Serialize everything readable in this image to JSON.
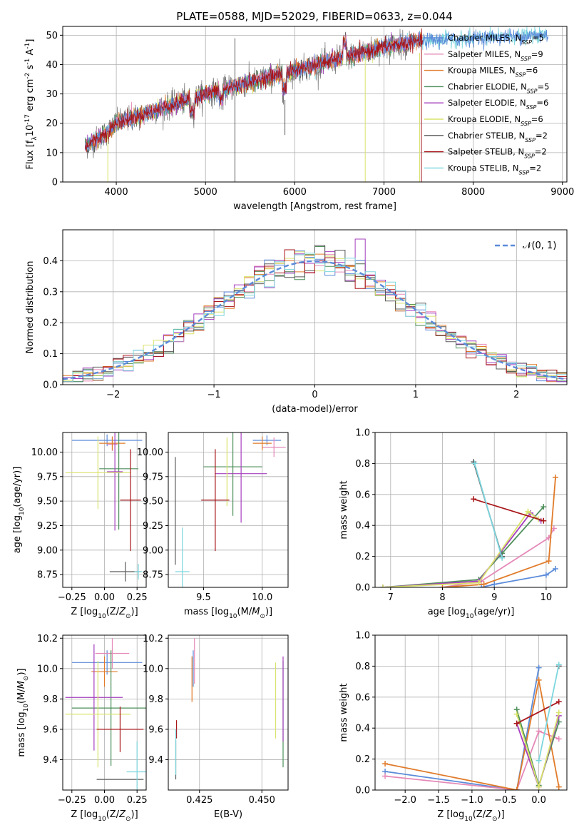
{
  "figure_title": "PLATE=0588, MJD=52029, FIBERID=0633, z=0.044",
  "series": [
    {
      "name": "Chabrier MILES",
      "nssp": "5",
      "color": "#5b8bd9"
    },
    {
      "name": "Salpeter MILES",
      "nssp": "9",
      "color": "#e589b8"
    },
    {
      "name": "Kroupa MILES",
      "nssp": "6",
      "color": "#e07b2a"
    },
    {
      "name": "Chabrier ELODIE",
      "nssp": "5",
      "color": "#4e8f5a"
    },
    {
      "name": "Salpeter ELODIE",
      "nssp": "6",
      "color": "#a63fbf"
    },
    {
      "name": "Kroupa ELODIE",
      "nssp": "6",
      "color": "#d9e36b"
    },
    {
      "name": "Chabrier STELIB",
      "nssp": "2",
      "color": "#5a5a5a"
    },
    {
      "name": "Salpeter STELIB",
      "nssp": "2",
      "color": "#a8161a"
    },
    {
      "name": "Kroupa STELIB",
      "nssp": "2",
      "color": "#7dd6de"
    }
  ],
  "chart_data": [
    {
      "id": "spectrum",
      "type": "line",
      "xlabel": "wavelength [Angstrom, rest frame]",
      "ylabel": "Flux [f_λ10^-17 erg cm^-2 s^-1 A^-1]",
      "xlim": [
        3400,
        9050
      ],
      "ylim": [
        0,
        53
      ],
      "xticks": [
        4000,
        5000,
        6000,
        7000,
        8000,
        9000
      ],
      "yticks": [
        0,
        10,
        20,
        30,
        40,
        50
      ],
      "legend_position": "right",
      "continuum_x": [
        3650,
        3800,
        3900,
        4000,
        4200,
        4500,
        5000,
        5500,
        6000,
        6500,
        7000,
        7400,
        8000,
        8800
      ],
      "continuum_y": [
        12,
        15,
        17,
        20,
        22,
        25,
        30,
        34,
        38,
        42,
        46,
        48,
        49,
        50
      ]
    },
    {
      "id": "residual_histogram",
      "type": "histogram",
      "xlabel": "(data-model)/error",
      "ylabel": "Normed distribution",
      "xlim": [
        -2.5,
        2.5
      ],
      "ylim": [
        0,
        0.5
      ],
      "xticks": [
        -2,
        -1,
        0,
        1,
        2
      ],
      "yticks": [
        0.0,
        0.1,
        0.2,
        0.3,
        0.4
      ],
      "reference_curve": "𝒩(0, 1)",
      "legend_position": "top-right"
    },
    {
      "id": "age_vs_Z",
      "type": "errorbar",
      "xlabel": "Z [log10(Z/Z⊙)]",
      "ylabel": "age  [log10(age/yr)]",
      "xlim": [
        -0.32,
        0.32
      ],
      "ylim": [
        8.62,
        10.2
      ],
      "xticks": [
        -0.25,
        0.0,
        0.25
      ],
      "yticks": [
        8.75,
        9.0,
        9.25,
        9.5,
        9.75,
        10.0
      ],
      "points": [
        {
          "s": 0,
          "x": 0.02,
          "xe": 0.27,
          "y": 10.12,
          "ye": 0.06
        },
        {
          "s": 1,
          "x": 0.06,
          "xe": 0.04,
          "y": 10.08,
          "ye": 0.07
        },
        {
          "s": 2,
          "x": 0.06,
          "xe": 0.1,
          "y": 10.09,
          "ye": 0.07
        },
        {
          "s": 3,
          "x": 0.11,
          "xe": 0.15,
          "y": 9.83,
          "ye": 0.62
        },
        {
          "s": 4,
          "x": 0.08,
          "xe": 0.06,
          "y": 9.8,
          "ye": 0.6
        },
        {
          "s": 5,
          "x": -0.05,
          "xe": 0.25,
          "y": 9.79,
          "ye": 0.37
        },
        {
          "s": 6,
          "x": 0.16,
          "xe": 0.12,
          "y": 8.78,
          "ye": 0.1
        },
        {
          "s": 7,
          "x": 0.2,
          "xe": 0.08,
          "y": 9.51,
          "ye": 0.52
        },
        {
          "s": 8,
          "x": 0.26,
          "xe": 0.03,
          "y": 8.78,
          "ye": 0.08
        }
      ]
    },
    {
      "id": "age_vs_mass",
      "type": "errorbar",
      "xlabel": "mass [log10(M/M⊙)]",
      "ylabel": "",
      "xlim": [
        9.2,
        10.22
      ],
      "ylim": [
        8.62,
        10.2
      ],
      "xticks": [
        9.5,
        10.0
      ],
      "yticks": [
        8.75,
        9.0,
        9.25,
        9.5,
        9.75,
        10.0
      ],
      "points": [
        {
          "s": 0,
          "x": 10.04,
          "xe": 0.12,
          "y": 10.12,
          "ye": 0.05
        },
        {
          "s": 1,
          "x": 10.1,
          "xe": 0.1,
          "y": 10.05,
          "ye": 0.1
        },
        {
          "s": 2,
          "x": 10.0,
          "xe": 0.08,
          "y": 10.09,
          "ye": 0.07
        },
        {
          "s": 3,
          "x": 9.75,
          "xe": 0.25,
          "y": 9.85,
          "ye": 0.5
        },
        {
          "s": 4,
          "x": 9.82,
          "xe": 0.22,
          "y": 9.78,
          "ye": 0.5
        },
        {
          "s": 5,
          "x": 9.7,
          "xe": 0.0,
          "y": 9.8,
          "ye": 0.35
        },
        {
          "s": 6,
          "x": 9.26,
          "xe": 0.0,
          "y": 9.4,
          "ye": 0.55
        },
        {
          "s": 7,
          "x": 9.6,
          "xe": 0.12,
          "y": 9.51,
          "ye": 0.52
        },
        {
          "s": 8,
          "x": 9.32,
          "xe": 0.06,
          "y": 8.78,
          "ye": 0.45
        }
      ]
    },
    {
      "id": "weight_vs_age",
      "type": "line",
      "xlabel": "age  [log10(age/yr)]",
      "ylabel": "mass weight",
      "xlim": [
        6.7,
        10.4
      ],
      "ylim": [
        0,
        1
      ],
      "xticks": [
        7,
        8,
        9,
        10
      ],
      "yticks": [
        0.0,
        0.2,
        0.4,
        0.6,
        0.8,
        1.0
      ],
      "lines": [
        {
          "s": 0,
          "x": [
            8.75,
            9.0,
            10.0,
            10.18
          ],
          "y": [
            0.0,
            0.02,
            0.08,
            0.12
          ]
        },
        {
          "s": 1,
          "x": [
            8.0,
            8.75,
            10.05,
            10.15
          ],
          "y": [
            0.0,
            0.04,
            0.32,
            0.38
          ]
        },
        {
          "s": 2,
          "x": [
            8.0,
            8.8,
            10.05,
            10.18
          ],
          "y": [
            0.0,
            0.02,
            0.17,
            0.71
          ]
        },
        {
          "s": 3,
          "x": [
            6.85,
            8.7,
            9.15,
            9.95
          ],
          "y": [
            0.0,
            0.05,
            0.22,
            0.52
          ]
        },
        {
          "s": 4,
          "x": [
            6.85,
            8.7,
            9.7,
            9.9
          ],
          "y": [
            0.0,
            0.04,
            0.48,
            0.43
          ]
        },
        {
          "s": 5,
          "x": [
            6.85,
            8.7,
            9.65,
            9.85
          ],
          "y": [
            0.0,
            0.03,
            0.49,
            0.44
          ]
        },
        {
          "s": 6,
          "x": [
            8.6,
            9.15
          ],
          "y": [
            0.81,
            0.2
          ]
        },
        {
          "s": 7,
          "x": [
            8.6,
            9.95
          ],
          "y": [
            0.57,
            0.43
          ]
        },
        {
          "s": 8,
          "x": [
            8.62,
            9.15
          ],
          "y": [
            0.8,
            0.19
          ]
        }
      ]
    },
    {
      "id": "mass_vs_Z",
      "type": "errorbar",
      "xlabel": "Z [log10(Z/Z⊙)]",
      "ylabel": "mass [log10(M/M⊙)]",
      "xlim": [
        -0.32,
        0.32
      ],
      "ylim": [
        9.2,
        10.22
      ],
      "xticks": [
        -0.25,
        0.0,
        0.25
      ],
      "yticks": [
        9.4,
        9.6,
        9.8,
        10.0,
        10.2
      ],
      "points": [
        {
          "s": 0,
          "x": 0.02,
          "xe": 0.27,
          "y": 10.04,
          "ye": 0.08
        },
        {
          "s": 1,
          "x": 0.06,
          "xe": 0.13,
          "y": 10.1,
          "ye": 0.1
        },
        {
          "s": 2,
          "x": 0.0,
          "xe": 0.1,
          "y": 9.98,
          "ye": 0.1
        },
        {
          "s": 3,
          "x": 0.05,
          "xe": 0.3,
          "y": 9.74,
          "ye": 0.38
        },
        {
          "s": 4,
          "x": -0.08,
          "xe": 0.22,
          "y": 9.81,
          "ye": 0.35
        },
        {
          "s": 5,
          "x": -0.05,
          "xe": 0.25,
          "y": 9.7,
          "ye": 0.35
        },
        {
          "s": 6,
          "x": 0.12,
          "xe": 0.18,
          "y": 9.27,
          "ye": 0.0
        },
        {
          "s": 7,
          "x": 0.12,
          "xe": 0.18,
          "y": 9.6,
          "ye": 0.15
        },
        {
          "s": 8,
          "x": 0.25,
          "xe": 0.08,
          "y": 9.32,
          "ye": 0.2
        }
      ]
    },
    {
      "id": "mass_vs_ebv",
      "type": "errorbar",
      "xlabel": "E(B-V)",
      "ylabel": "",
      "xlim": [
        0.4125,
        0.4605
      ],
      "ylim": [
        9.2,
        10.22
      ],
      "xticks": [
        0.425,
        0.45
      ],
      "yticks": [
        9.4,
        9.6,
        9.8,
        10.0,
        10.2
      ],
      "points": [
        {
          "s": 0,
          "x": 0.4225,
          "xe": 0.0,
          "y": 10.0,
          "ye": 0.12
        },
        {
          "s": 1,
          "x": 0.423,
          "xe": 0.0,
          "y": 10.05,
          "ye": 0.15
        },
        {
          "s": 2,
          "x": 0.422,
          "xe": 0.0,
          "y": 9.93,
          "ye": 0.15
        },
        {
          "s": 3,
          "x": 0.4585,
          "xe": 0.0,
          "y": 9.7,
          "ye": 0.35
        },
        {
          "s": 4,
          "x": 0.4585,
          "xe": 0.0,
          "y": 9.8,
          "ye": 0.28
        },
        {
          "s": 5,
          "x": 0.4555,
          "xe": 0.0,
          "y": 9.79,
          "ye": 0.25
        },
        {
          "s": 6,
          "x": 0.4155,
          "xe": 0.0,
          "y": 9.4,
          "ye": 0.13
        },
        {
          "s": 7,
          "x": 0.4158,
          "xe": 0.0,
          "y": 9.6,
          "ye": 0.06
        },
        {
          "s": 8,
          "x": 0.4155,
          "xe": 0.0,
          "y": 9.45,
          "ye": 0.15
        }
      ]
    },
    {
      "id": "weight_vs_Z",
      "type": "line",
      "xlabel": "Z [log10(Z/Z⊙)]",
      "ylabel": "mass weight",
      "xlim": [
        -2.45,
        0.42
      ],
      "ylim": [
        0,
        1
      ],
      "xticks": [
        -2.0,
        -1.5,
        -1.0,
        -0.5,
        0.0
      ],
      "yticks": [
        0.0,
        0.2,
        0.4,
        0.6,
        0.8,
        1.0
      ],
      "lines": [
        {
          "s": 0,
          "x": [
            -2.3,
            -0.33,
            0.0
          ],
          "y": [
            0.12,
            0.0,
            0.79
          ]
        },
        {
          "s": 1,
          "x": [
            -2.3,
            -0.33,
            0.0,
            0.3
          ],
          "y": [
            0.09,
            0.0,
            0.38,
            0.33
          ]
        },
        {
          "s": 2,
          "x": [
            -2.3,
            -0.33,
            0.0,
            0.3
          ],
          "y": [
            0.17,
            0.0,
            0.71,
            0.02
          ]
        },
        {
          "s": 3,
          "x": [
            -0.33,
            0.0,
            0.3
          ],
          "y": [
            0.52,
            0.03,
            0.44
          ]
        },
        {
          "s": 4,
          "x": [
            -0.33,
            0.0,
            0.3
          ],
          "y": [
            0.43,
            0.02,
            0.48
          ]
        },
        {
          "s": 5,
          "x": [
            -0.33,
            0.0,
            0.3
          ],
          "y": [
            0.49,
            0.02,
            0.5
          ]
        },
        {
          "s": 6,
          "x": [
            0.3
          ],
          "y": [
            0.8
          ]
        },
        {
          "s": 7,
          "x": [
            -0.33,
            0.3
          ],
          "y": [
            0.43,
            0.57
          ]
        },
        {
          "s": 8,
          "x": [
            0.0,
            0.3
          ],
          "y": [
            0.19,
            0.81
          ]
        }
      ]
    }
  ]
}
